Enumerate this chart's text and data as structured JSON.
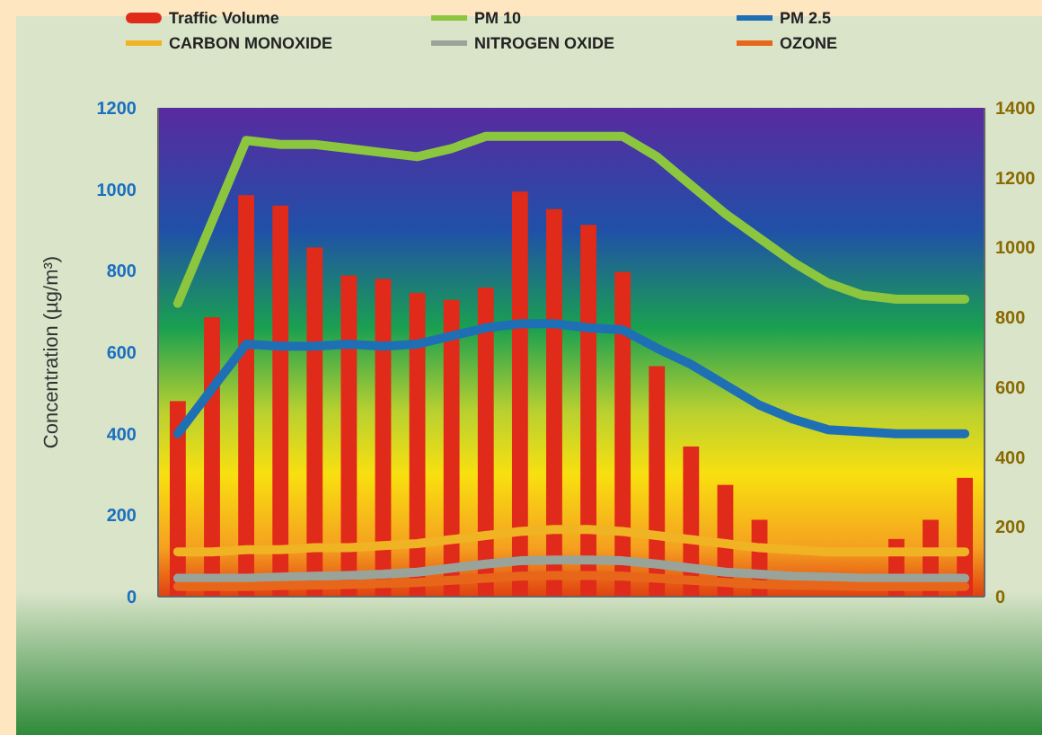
{
  "chart_data": {
    "type": "bar",
    "ylabel": "Concentration (µg/m³)",
    "categories": [
      null,
      null,
      null,
      null,
      null,
      null,
      null,
      null,
      null,
      null,
      null,
      null,
      null,
      null,
      null,
      null,
      null,
      null,
      null,
      null,
      null,
      null,
      null,
      null
    ],
    "ylim": [
      0,
      1200
    ],
    "yticks": [
      0,
      200,
      400,
      600,
      800,
      1000,
      1200
    ],
    "y2lim": [
      0,
      1400
    ],
    "y2ticks": [
      0,
      200,
      400,
      600,
      800,
      1000,
      1200,
      1400
    ],
    "grid": false,
    "legend": "top",
    "series": [
      {
        "name": "Traffic Volume",
        "axis": "y2",
        "color": "#e02a1a",
        "values": [
          560,
          800,
          1150,
          1120,
          1000,
          920,
          910,
          870,
          850,
          885,
          1160,
          1110,
          1065,
          930,
          660,
          430,
          320,
          220,
          null,
          null,
          null,
          165,
          220,
          340
        ]
      },
      {
        "name": "PM 10",
        "type": "line",
        "color": "#8cc63f",
        "values": [
          720,
          920,
          1120,
          1110,
          1110,
          1100,
          1090,
          1080,
          1100,
          1130,
          1130,
          1130,
          1130,
          1130,
          1080,
          1010,
          940,
          880,
          820,
          770,
          740,
          730,
          730,
          730
        ]
      },
      {
        "name": "PM 2.5",
        "type": "line",
        "color": "#1f6fb5",
        "values": [
          400,
          510,
          620,
          615,
          615,
          620,
          615,
          620,
          640,
          660,
          670,
          670,
          660,
          655,
          610,
          570,
          520,
          470,
          435,
          410,
          405,
          400,
          400,
          400
        ]
      },
      {
        "name": "CARBON MONOXIDE",
        "type": "line",
        "color": "#f0b323",
        "values": [
          110,
          110,
          115,
          115,
          120,
          120,
          125,
          130,
          140,
          150,
          160,
          165,
          165,
          160,
          150,
          140,
          130,
          120,
          115,
          110,
          110,
          110,
          110,
          110
        ]
      },
      {
        "name": "NITROGEN OXIDE",
        "type": "line",
        "color": "#9aa39a",
        "values": [
          45,
          45,
          45,
          48,
          50,
          52,
          55,
          60,
          70,
          80,
          88,
          90,
          90,
          88,
          80,
          70,
          60,
          55,
          50,
          48,
          45,
          45,
          45,
          45
        ]
      },
      {
        "name": "OZONE",
        "type": "line",
        "color": "#e8661a",
        "values": [
          25,
          25,
          25,
          27,
          28,
          30,
          32,
          35,
          40,
          45,
          50,
          52,
          52,
          50,
          45,
          40,
          35,
          30,
          28,
          27,
          25,
          25,
          25,
          25
        ]
      }
    ]
  }
}
